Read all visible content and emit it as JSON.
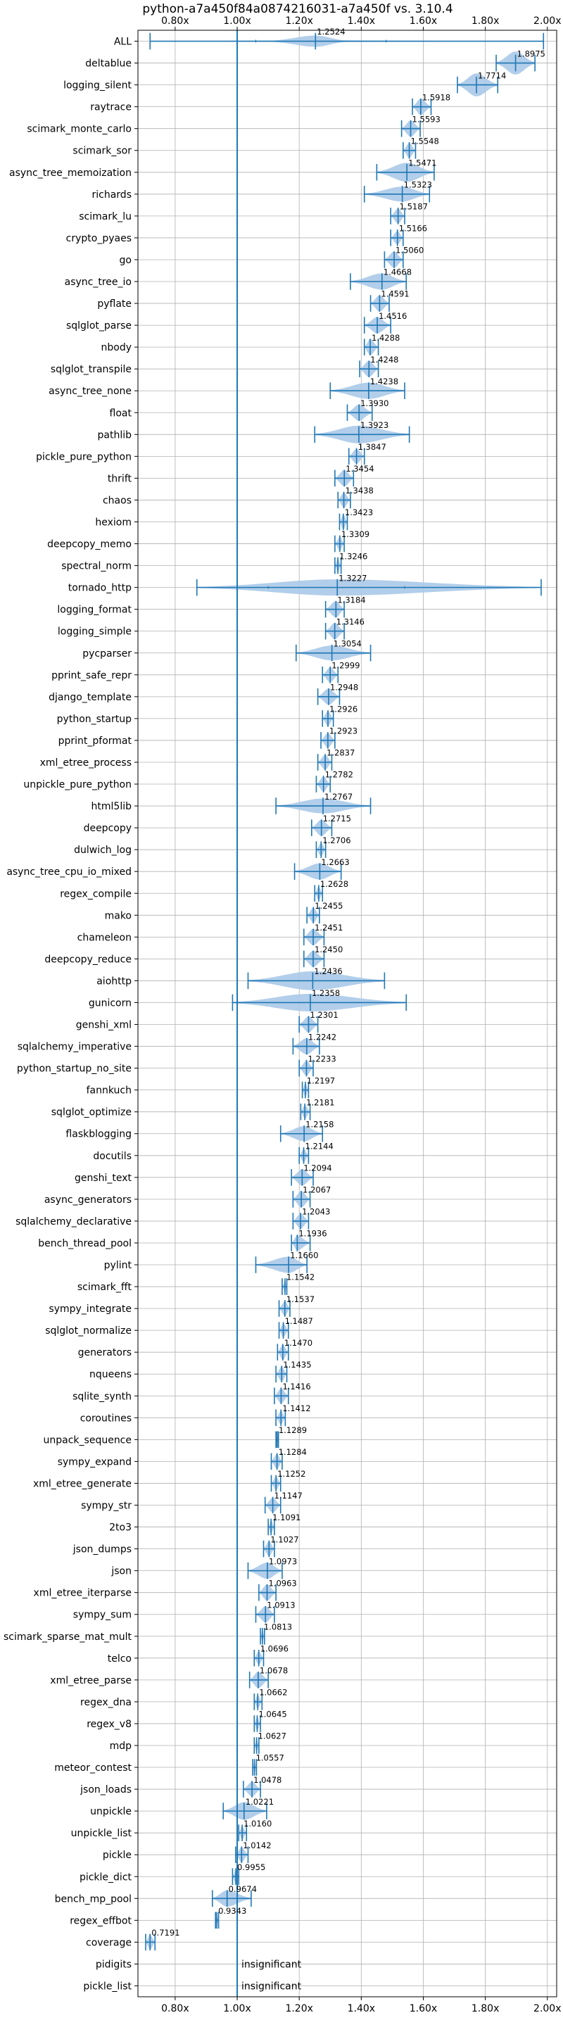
{
  "chart_data": {
    "type": "violin",
    "title": "python-a7a450f84a0874216031-a7a450f vs. 3.10.4",
    "xlim": [
      0.68,
      2.03
    ],
    "x_ticks": [
      0.8,
      1.0,
      1.2,
      1.4,
      1.6,
      1.8,
      2.0
    ],
    "x_tick_labels": [
      "0.80x",
      "1.00x",
      "1.20x",
      "1.40x",
      "1.60x",
      "1.80x",
      "2.00x"
    ],
    "reference_line": 1.0,
    "grid": true,
    "colors": {
      "violin": "#aac9e8",
      "marker": "#1f77b4",
      "reference": "#1f77b4",
      "grid": "#b0b0b0"
    },
    "benchmarks": [
      {
        "name": "ALL",
        "value": 1.2524,
        "label": "1.2524",
        "min": 0.7191,
        "max": 1.9875,
        "q1": 1.06,
        "q3": 1.48,
        "body_min": 1.1,
        "body_max": 1.36,
        "spread": 0.55
      },
      {
        "name": "deltablue",
        "value": 1.8975,
        "label": "1.8975",
        "min": 1.835,
        "max": 1.96,
        "spread": 0.85
      },
      {
        "name": "logging_silent",
        "value": 1.7714,
        "label": "1.7714",
        "min": 1.71,
        "max": 1.84,
        "spread": 0.85
      },
      {
        "name": "raytrace",
        "value": 1.5918,
        "label": "1.5918",
        "min": 1.565,
        "max": 1.625,
        "spread": 0.6
      },
      {
        "name": "scimark_monte_carlo",
        "value": 1.5593,
        "label": "1.5593",
        "min": 1.53,
        "max": 1.59,
        "spread": 0.6
      },
      {
        "name": "scimark_sor",
        "value": 1.5548,
        "label": "1.5548",
        "min": 1.535,
        "max": 1.575,
        "spread": 0.55
      },
      {
        "name": "async_tree_memoization",
        "value": 1.5471,
        "label": "1.5471",
        "min": 1.45,
        "max": 1.635,
        "spread": 0.7
      },
      {
        "name": "richards",
        "value": 1.5323,
        "label": "1.5323",
        "min": 1.41,
        "max": 1.62,
        "spread": 0.55
      },
      {
        "name": "scimark_lu",
        "value": 1.5187,
        "label": "1.5187",
        "min": 1.495,
        "max": 1.54,
        "spread": 0.55
      },
      {
        "name": "crypto_pyaes",
        "value": 1.5166,
        "label": "1.5166",
        "min": 1.495,
        "max": 1.535,
        "spread": 0.5
      },
      {
        "name": "go",
        "value": 1.506,
        "label": "1.5060",
        "min": 1.475,
        "max": 1.535,
        "spread": 0.6
      },
      {
        "name": "async_tree_io",
        "value": 1.4668,
        "label": "1.4668",
        "min": 1.365,
        "max": 1.545,
        "spread": 0.6
      },
      {
        "name": "pyflate",
        "value": 1.4591,
        "label": "1.4591",
        "min": 1.43,
        "max": 1.49,
        "spread": 0.6
      },
      {
        "name": "sqlglot_parse",
        "value": 1.4516,
        "label": "1.4516",
        "min": 1.41,
        "max": 1.495,
        "spread": 0.6
      },
      {
        "name": "nbody",
        "value": 1.4288,
        "label": "1.4288",
        "min": 1.41,
        "max": 1.455,
        "spread": 0.6
      },
      {
        "name": "sqlglot_transpile",
        "value": 1.4248,
        "label": "1.4248",
        "min": 1.395,
        "max": 1.455,
        "spread": 0.6
      },
      {
        "name": "async_tree_none",
        "value": 1.4238,
        "label": "1.4238",
        "min": 1.3,
        "max": 1.54,
        "spread": 0.6
      },
      {
        "name": "float",
        "value": 1.393,
        "label": "1.3930",
        "min": 1.355,
        "max": 1.435,
        "spread": 0.6
      },
      {
        "name": "pathlib",
        "value": 1.3923,
        "label": "1.3923",
        "min": 1.25,
        "max": 1.555,
        "spread": 0.65
      },
      {
        "name": "pickle_pure_python",
        "value": 1.3847,
        "label": "1.3847",
        "min": 1.36,
        "max": 1.41,
        "spread": 0.55
      },
      {
        "name": "thrift",
        "value": 1.3454,
        "label": "1.3454",
        "min": 1.315,
        "max": 1.375,
        "spread": 0.6
      },
      {
        "name": "chaos",
        "value": 1.3438,
        "label": "1.3438",
        "min": 1.325,
        "max": 1.365,
        "spread": 0.55
      },
      {
        "name": "hexiom",
        "value": 1.3423,
        "label": "1.3423",
        "min": 1.33,
        "max": 1.355,
        "spread": 0.55
      },
      {
        "name": "deepcopy_memo",
        "value": 1.3309,
        "label": "1.3309",
        "min": 1.315,
        "max": 1.345,
        "spread": 0.5
      },
      {
        "name": "spectral_norm",
        "value": 1.3246,
        "label": "1.3246",
        "min": 1.315,
        "max": 1.335,
        "spread": 0.5
      },
      {
        "name": "tornado_http",
        "value": 1.3227,
        "label": "1.3227",
        "min": 0.87,
        "max": 1.98,
        "q1": 1.1,
        "q3": 1.54,
        "spread": 0.6
      },
      {
        "name": "logging_format",
        "value": 1.3184,
        "label": "1.3184",
        "min": 1.285,
        "max": 1.345,
        "spread": 0.6
      },
      {
        "name": "logging_simple",
        "value": 1.3146,
        "label": "1.3146",
        "min": 1.285,
        "max": 1.345,
        "spread": 0.6
      },
      {
        "name": "pycparser",
        "value": 1.3054,
        "label": "1.3054",
        "min": 1.19,
        "max": 1.43,
        "spread": 0.55
      },
      {
        "name": "pprint_safe_repr",
        "value": 1.2999,
        "label": "1.2999",
        "min": 1.275,
        "max": 1.325,
        "spread": 0.55
      },
      {
        "name": "django_template",
        "value": 1.2948,
        "label": "1.2948",
        "min": 1.26,
        "max": 1.33,
        "spread": 0.6
      },
      {
        "name": "python_startup",
        "value": 1.2926,
        "label": "1.2926",
        "min": 1.275,
        "max": 1.31,
        "spread": 0.55
      },
      {
        "name": "pprint_pformat",
        "value": 1.2923,
        "label": "1.2923",
        "min": 1.27,
        "max": 1.315,
        "spread": 0.55
      },
      {
        "name": "xml_etree_process",
        "value": 1.2837,
        "label": "1.2837",
        "min": 1.26,
        "max": 1.305,
        "spread": 0.55
      },
      {
        "name": "unpickle_pure_python",
        "value": 1.2782,
        "label": "1.2782",
        "min": 1.255,
        "max": 1.3,
        "spread": 0.55
      },
      {
        "name": "html5lib",
        "value": 1.2767,
        "label": "1.2767",
        "min": 1.125,
        "max": 1.43,
        "spread": 0.55
      },
      {
        "name": "deepcopy",
        "value": 1.2715,
        "label": "1.2715",
        "min": 1.24,
        "max": 1.305,
        "spread": 0.6
      },
      {
        "name": "dulwich_log",
        "value": 1.2706,
        "label": "1.2706",
        "min": 1.255,
        "max": 1.285,
        "spread": 0.5
      },
      {
        "name": "async_tree_cpu_io_mixed",
        "value": 1.2663,
        "label": "1.2663",
        "min": 1.185,
        "max": 1.335,
        "spread": 0.6
      },
      {
        "name": "regex_compile",
        "value": 1.2628,
        "label": "1.2628",
        "min": 1.25,
        "max": 1.275,
        "spread": 0.5
      },
      {
        "name": "mako",
        "value": 1.2455,
        "label": "1.2455",
        "min": 1.225,
        "max": 1.265,
        "spread": 0.55
      },
      {
        "name": "chameleon",
        "value": 1.2451,
        "label": "1.2451",
        "min": 1.215,
        "max": 1.28,
        "spread": 0.6
      },
      {
        "name": "deepcopy_reduce",
        "value": 1.245,
        "label": "1.2450",
        "min": 1.215,
        "max": 1.28,
        "spread": 0.6
      },
      {
        "name": "aiohttp",
        "value": 1.2436,
        "label": "1.2436",
        "min": 1.035,
        "max": 1.475,
        "spread": 0.7
      },
      {
        "name": "gunicorn",
        "value": 1.2358,
        "label": "1.2358",
        "min": 0.985,
        "max": 1.545,
        "spread": 0.65
      },
      {
        "name": "genshi_xml",
        "value": 1.2301,
        "label": "1.2301",
        "min": 1.2,
        "max": 1.26,
        "spread": 0.6
      },
      {
        "name": "sqlalchemy_imperative",
        "value": 1.2242,
        "label": "1.2242",
        "min": 1.18,
        "max": 1.265,
        "spread": 0.6
      },
      {
        "name": "python_startup_no_site",
        "value": 1.2233,
        "label": "1.2233",
        "min": 1.2,
        "max": 1.245,
        "spread": 0.55
      },
      {
        "name": "fannkuch",
        "value": 1.2197,
        "label": "1.2197",
        "min": 1.21,
        "max": 1.23,
        "spread": 0.5
      },
      {
        "name": "sqlglot_optimize",
        "value": 1.2181,
        "label": "1.2181",
        "min": 1.205,
        "max": 1.235,
        "spread": 0.5
      },
      {
        "name": "flaskblogging",
        "value": 1.2158,
        "label": "1.2158",
        "min": 1.14,
        "max": 1.275,
        "spread": 0.55
      },
      {
        "name": "docutils",
        "value": 1.2144,
        "label": "1.2144",
        "min": 1.2,
        "max": 1.23,
        "spread": 0.5
      },
      {
        "name": "genshi_text",
        "value": 1.2094,
        "label": "1.2094",
        "min": 1.175,
        "max": 1.245,
        "spread": 0.6
      },
      {
        "name": "async_generators",
        "value": 1.2067,
        "label": "1.2067",
        "min": 1.18,
        "max": 1.235,
        "spread": 0.6
      },
      {
        "name": "sqlalchemy_declarative",
        "value": 1.2043,
        "label": "1.2043",
        "min": 1.18,
        "max": 1.23,
        "spread": 0.55
      },
      {
        "name": "bench_thread_pool",
        "value": 1.1936,
        "label": "1.1936",
        "min": 1.175,
        "max": 1.235,
        "spread": 0.55
      },
      {
        "name": "pylint",
        "value": 1.166,
        "label": "1.1660",
        "min": 1.06,
        "max": 1.225,
        "spread": 0.6
      },
      {
        "name": "scimark_fft",
        "value": 1.1542,
        "label": "1.1542",
        "min": 1.145,
        "max": 1.16,
        "spread": 0.45
      },
      {
        "name": "sympy_integrate",
        "value": 1.1537,
        "label": "1.1537",
        "min": 1.135,
        "max": 1.17,
        "spread": 0.55
      },
      {
        "name": "sqlglot_normalize",
        "value": 1.1487,
        "label": "1.1487",
        "min": 1.135,
        "max": 1.165,
        "spread": 0.5
      },
      {
        "name": "generators",
        "value": 1.147,
        "label": "1.1470",
        "min": 1.13,
        "max": 1.165,
        "spread": 0.55
      },
      {
        "name": "nqueens",
        "value": 1.1435,
        "label": "1.1435",
        "min": 1.125,
        "max": 1.16,
        "spread": 0.55
      },
      {
        "name": "sqlite_synth",
        "value": 1.1416,
        "label": "1.1416",
        "min": 1.12,
        "max": 1.165,
        "spread": 0.55
      },
      {
        "name": "coroutines",
        "value": 1.1412,
        "label": "1.1412",
        "min": 1.125,
        "max": 1.155,
        "spread": 0.5
      },
      {
        "name": "unpack_sequence",
        "value": 1.1289,
        "label": "1.1289",
        "min": 1.125,
        "max": 1.133,
        "spread": 0.4
      },
      {
        "name": "sympy_expand",
        "value": 1.1284,
        "label": "1.1284",
        "min": 1.11,
        "max": 1.145,
        "spread": 0.55
      },
      {
        "name": "xml_etree_generate",
        "value": 1.1252,
        "label": "1.1252",
        "min": 1.11,
        "max": 1.14,
        "spread": 0.5
      },
      {
        "name": "sympy_str",
        "value": 1.1147,
        "label": "1.1147",
        "min": 1.09,
        "max": 1.14,
        "spread": 0.55
      },
      {
        "name": "2to3",
        "value": 1.1091,
        "label": "1.1091",
        "min": 1.1,
        "max": 1.12,
        "spread": 0.5
      },
      {
        "name": "json_dumps",
        "value": 1.1027,
        "label": "1.1027",
        "min": 1.085,
        "max": 1.12,
        "spread": 0.55
      },
      {
        "name": "json",
        "value": 1.0973,
        "label": "1.0973",
        "min": 1.035,
        "max": 1.145,
        "spread": 0.6
      },
      {
        "name": "xml_etree_iterparse",
        "value": 1.0963,
        "label": "1.0963",
        "min": 1.07,
        "max": 1.125,
        "spread": 0.6
      },
      {
        "name": "sympy_sum",
        "value": 1.0913,
        "label": "1.0913",
        "min": 1.06,
        "max": 1.12,
        "spread": 0.6
      },
      {
        "name": "scimark_sparse_mat_mult",
        "value": 1.0813,
        "label": "1.0813",
        "min": 1.075,
        "max": 1.088,
        "spread": 0.45
      },
      {
        "name": "telco",
        "value": 1.0696,
        "label": "1.0696",
        "min": 1.055,
        "max": 1.085,
        "spread": 0.5
      },
      {
        "name": "xml_etree_parse",
        "value": 1.0678,
        "label": "1.0678",
        "min": 1.04,
        "max": 1.1,
        "spread": 0.6
      },
      {
        "name": "regex_dna",
        "value": 1.0662,
        "label": "1.0662",
        "min": 1.055,
        "max": 1.08,
        "spread": 0.5
      },
      {
        "name": "regex_v8",
        "value": 1.0645,
        "label": "1.0645",
        "min": 1.055,
        "max": 1.075,
        "spread": 0.5
      },
      {
        "name": "mdp",
        "value": 1.0627,
        "label": "1.0627",
        "min": 1.055,
        "max": 1.07,
        "spread": 0.45
      },
      {
        "name": "meteor_contest",
        "value": 1.0557,
        "label": "1.0557",
        "min": 1.05,
        "max": 1.062,
        "spread": 0.45
      },
      {
        "name": "json_loads",
        "value": 1.0478,
        "label": "1.0478",
        "min": 1.02,
        "max": 1.075,
        "spread": 0.55
      },
      {
        "name": "unpickle",
        "value": 1.0221,
        "label": "1.0221",
        "min": 0.955,
        "max": 1.095,
        "spread": 0.65
      },
      {
        "name": "unpickle_list",
        "value": 1.016,
        "label": "1.0160",
        "min": 1.005,
        "max": 1.03,
        "spread": 0.5
      },
      {
        "name": "pickle",
        "value": 1.0142,
        "label": "1.0142",
        "min": 0.995,
        "max": 1.035,
        "spread": 0.55
      },
      {
        "name": "pickle_dict",
        "value": 0.9955,
        "label": "0.9955",
        "min": 0.985,
        "max": 1.005,
        "spread": 0.5
      },
      {
        "name": "bench_mp_pool",
        "value": 0.9674,
        "label": "0.9674",
        "min": 0.92,
        "max": 1.045,
        "spread": 0.6
      },
      {
        "name": "regex_effbot",
        "value": 0.9343,
        "label": "0.9343",
        "min": 0.93,
        "max": 0.94,
        "spread": 0.4
      },
      {
        "name": "coverage",
        "value": 0.7191,
        "label": "0.7191",
        "min": 0.705,
        "max": 0.735,
        "spread": 0.55
      },
      {
        "name": "pidigits",
        "value": null,
        "label": "insignificant"
      },
      {
        "name": "pickle_list",
        "value": null,
        "label": "insignificant"
      }
    ]
  }
}
